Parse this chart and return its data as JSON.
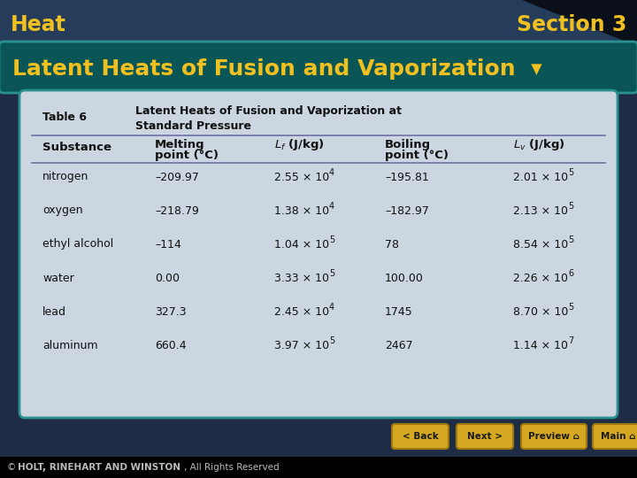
{
  "title_left": "Heat",
  "title_right": "Section 3",
  "subtitle": "Latent Heats of Fusion and Vaporization  ▾",
  "table_title": "Table 6",
  "table_caption_line1": "Latent Heats of Fusion and Vaporization at",
  "table_caption_line2": "Standard Pressure",
  "rows": [
    [
      "nitrogen",
      "–209.97",
      "2.55",
      "4",
      "–195.81",
      "2.01",
      "5"
    ],
    [
      "oxygen",
      "–218.79",
      "1.38",
      "4",
      "–182.97",
      "2.13",
      "5"
    ],
    [
      "ethyl alcohol",
      "–114",
      "1.04",
      "5",
      "78",
      "8.54",
      "5"
    ],
    [
      "water",
      "0.00",
      "3.33",
      "5",
      "100.00",
      "2.26",
      "6"
    ],
    [
      "lead",
      "327.3",
      "2.45",
      "4",
      "1745",
      "8.70",
      "5"
    ],
    [
      "aluminum",
      "660.4",
      "3.97",
      "5",
      "2467",
      "1.14",
      "7"
    ]
  ],
  "bg_dark": "#1e2d45",
  "bg_darkest": "#0a0f1a",
  "teal_bar": "#0a5555",
  "teal_border": "#2a9090",
  "table_bg": "#ccd6e0",
  "title_color": "#f0c020",
  "subtitle_color": "#f0c020",
  "table_text": "#111111",
  "footer_bg": "#000000",
  "footer_text_color": "#cccccc",
  "btn_color": "#d4a820",
  "btn_border": "#a07810"
}
